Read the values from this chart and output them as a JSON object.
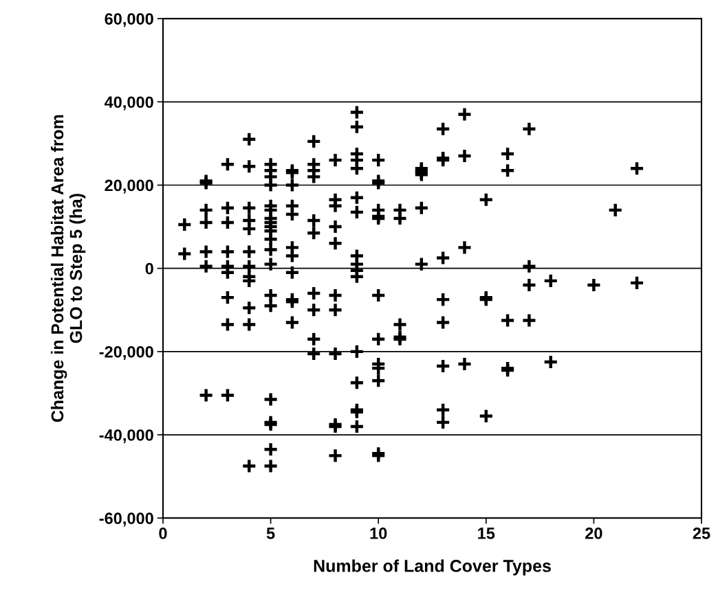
{
  "chart_data": {
    "type": "scatter",
    "xlabel": "Number of Land Cover Types",
    "ylabel": "Change in Potential Habitat Area from\nGLO to Step 5 (ha)",
    "xlim": [
      0,
      25
    ],
    "xticks": [
      0,
      5,
      10,
      15,
      20,
      25
    ],
    "ylim": [
      -60000,
      60000
    ],
    "yticks": [
      {
        "value": -60000,
        "label": "-60,000"
      },
      {
        "value": -40000,
        "label": "-40,000"
      },
      {
        "value": -20000,
        "label": "-20,000"
      },
      {
        "value": 0,
        "label": "0"
      },
      {
        "value": 20000,
        "label": "20,000"
      },
      {
        "value": 40000,
        "label": "40,000"
      },
      {
        "value": 60000,
        "label": "60,000"
      }
    ],
    "grid": "y",
    "marker": "cross",
    "series": [
      {
        "color": "#000000",
        "x": [
          1,
          1,
          2,
          2,
          2,
          2,
          2,
          2,
          2,
          3,
          3,
          3,
          3,
          3,
          3,
          3,
          3,
          3,
          4,
          4,
          4,
          4,
          4,
          4,
          4,
          4,
          4,
          4,
          4,
          4,
          5,
          5,
          5,
          5,
          5,
          5,
          5,
          5,
          5,
          5,
          5,
          5,
          5,
          5,
          5,
          5,
          5,
          5,
          5,
          5,
          6,
          6,
          6,
          6,
          6,
          6,
          6,
          6,
          6,
          6,
          6,
          7,
          7,
          7,
          7,
          7,
          7,
          7,
          7,
          7,
          7,
          8,
          8,
          8,
          8,
          8,
          8,
          8,
          8,
          8,
          8,
          8,
          9,
          9,
          9,
          9,
          9,
          9,
          9,
          9,
          9,
          9,
          9,
          9,
          9,
          9,
          9,
          9,
          10,
          10,
          10,
          10,
          10,
          10,
          10,
          10,
          10,
          10,
          10,
          10,
          10,
          11,
          11,
          11,
          11,
          11,
          12,
          12,
          12,
          12,
          12,
          12,
          13,
          13,
          13,
          13,
          13,
          13,
          13,
          13,
          13,
          14,
          14,
          14,
          14,
          15,
          15,
          15,
          15,
          16,
          16,
          16,
          16,
          16,
          17,
          17,
          17,
          17,
          18,
          18,
          20,
          21,
          22,
          22
        ],
        "values": [
          10500,
          3500,
          21000,
          20500,
          14000,
          11000,
          4000,
          500,
          -30500,
          25000,
          14500,
          11000,
          4000,
          500,
          -1000,
          -7000,
          -13500,
          -30500,
          31000,
          24500,
          14500,
          11500,
          9500,
          4000,
          500,
          -2000,
          -3000,
          -9500,
          -13500,
          -47500,
          25000,
          23500,
          22000,
          20000,
          15000,
          14000,
          12000,
          11000,
          10000,
          9000,
          7000,
          4500,
          1000,
          -6500,
          -9000,
          -31500,
          -37000,
          -37500,
          -43500,
          -47500,
          23500,
          23000,
          20000,
          15000,
          13000,
          5000,
          3000,
          -1000,
          -7500,
          -8000,
          -13000,
          30500,
          25000,
          23500,
          22000,
          11500,
          8500,
          -6000,
          -10000,
          -17000,
          -20500,
          26000,
          16500,
          15000,
          10000,
          6000,
          -6500,
          -10000,
          -20500,
          -37500,
          -38000,
          -45000,
          37500,
          34000,
          27500,
          26000,
          24000,
          17000,
          13500,
          3000,
          1000,
          -500,
          -2000,
          -20000,
          -27500,
          -34000,
          -34500,
          -38000,
          26000,
          21000,
          20500,
          14000,
          12500,
          12000,
          -6500,
          -17000,
          -23000,
          -24000,
          -27000,
          -44500,
          -45000,
          14000,
          12000,
          -13500,
          -16500,
          -17000,
          24000,
          23500,
          23000,
          22500,
          14500,
          1000,
          33500,
          26500,
          26000,
          2500,
          -7500,
          -13000,
          -23500,
          -34000,
          -37000,
          37000,
          27000,
          5000,
          -23000,
          16500,
          -7000,
          -7500,
          -35500,
          27500,
          23500,
          -12500,
          -24000,
          -24500,
          33500,
          500,
          -4000,
          -12500,
          -3000,
          -22500,
          -4000,
          14000,
          24000,
          -3500
        ]
      }
    ]
  }
}
